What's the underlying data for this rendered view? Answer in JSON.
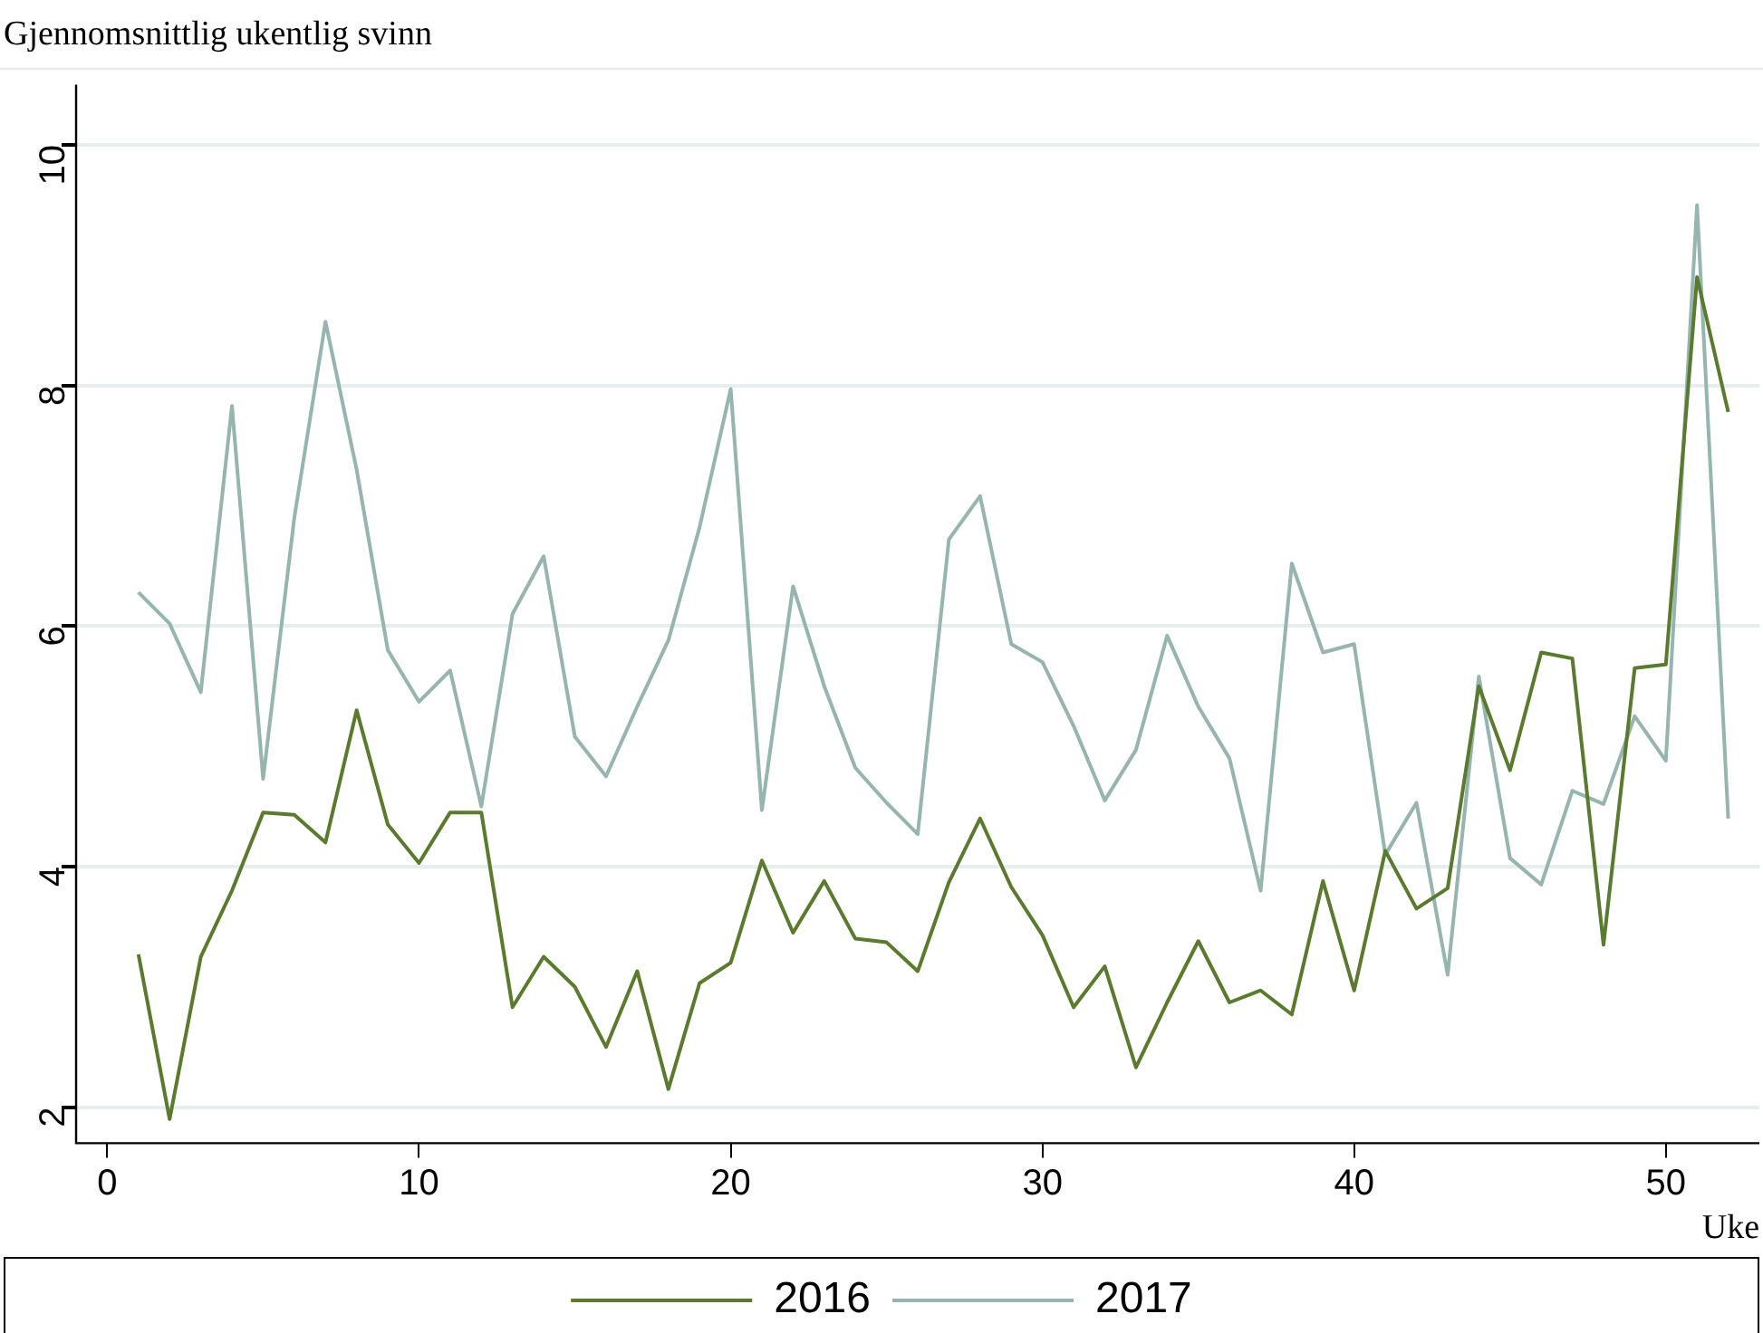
{
  "chart_data": {
    "type": "line",
    "title": "Gjennomsnittlig ukentlig svinn",
    "xlabel": "Uke",
    "x": [
      1,
      2,
      3,
      4,
      5,
      6,
      7,
      8,
      9,
      10,
      11,
      12,
      13,
      14,
      15,
      16,
      17,
      18,
      19,
      20,
      21,
      22,
      23,
      24,
      25,
      26,
      27,
      28,
      29,
      30,
      31,
      32,
      33,
      34,
      35,
      36,
      37,
      38,
      39,
      40,
      41,
      42,
      43,
      44,
      45,
      46,
      47,
      48,
      49,
      50,
      51,
      52
    ],
    "series": [
      {
        "name": "2016",
        "color": "#5a7a2e",
        "values": [
          3.27,
          1.9,
          3.25,
          3.8,
          4.45,
          4.43,
          4.2,
          5.3,
          4.35,
          4.03,
          4.45,
          4.45,
          2.83,
          3.25,
          3.0,
          2.5,
          3.13,
          2.15,
          3.03,
          3.2,
          4.05,
          3.45,
          3.88,
          3.4,
          3.37,
          3.13,
          3.87,
          4.4,
          3.83,
          3.43,
          2.83,
          3.17,
          2.33,
          2.87,
          3.38,
          2.87,
          2.97,
          2.77,
          3.88,
          2.97,
          4.13,
          3.65,
          3.82,
          5.5,
          4.8,
          5.78,
          5.73,
          3.35,
          5.65,
          5.68,
          8.9,
          7.78
        ]
      },
      {
        "name": "2017",
        "color": "#95b5ae",
        "values": [
          6.28,
          6.02,
          5.45,
          7.83,
          4.73,
          6.9,
          8.53,
          7.3,
          5.8,
          5.37,
          5.63,
          4.5,
          6.1,
          6.58,
          5.08,
          4.75,
          5.33,
          5.88,
          6.82,
          7.97,
          4.47,
          6.33,
          5.5,
          4.82,
          4.53,
          4.27,
          6.72,
          7.08,
          5.85,
          5.7,
          5.17,
          4.55,
          4.97,
          5.92,
          5.33,
          4.9,
          3.8,
          6.52,
          5.78,
          5.85,
          4.1,
          4.53,
          3.1,
          5.58,
          4.07,
          3.85,
          4.63,
          4.52,
          5.25,
          4.88,
          9.5,
          4.4
        ]
      }
    ],
    "xlim": [
      -1,
      53
    ],
    "xticks": [
      0,
      10,
      20,
      30,
      40,
      50
    ],
    "ylim": [
      1.7,
      10.5
    ],
    "yticks": [
      2,
      4,
      6,
      8,
      10
    ],
    "grid": "y",
    "legend": "bottom",
    "marker": "none",
    "line_style": "solid"
  }
}
